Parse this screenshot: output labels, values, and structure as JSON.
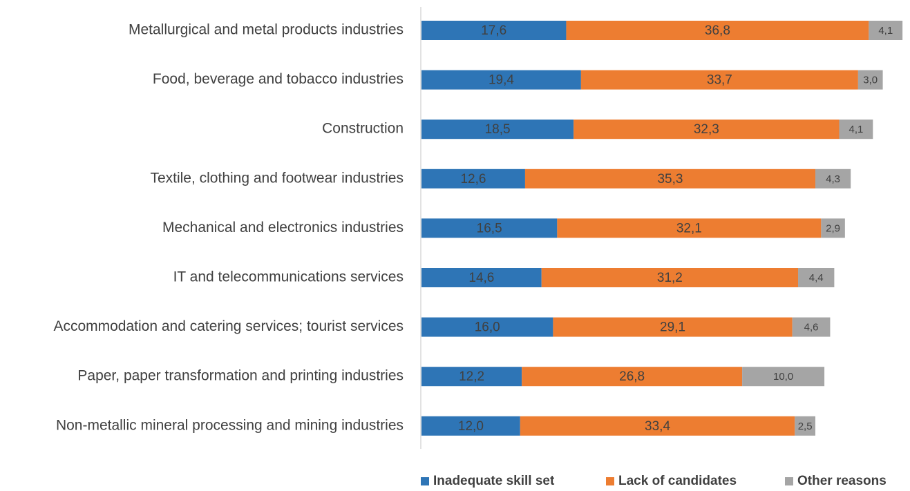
{
  "chart_data": {
    "type": "bar",
    "orientation": "horizontal",
    "stacked": true,
    "categories": [
      "Metallurgical and metal products industries",
      "Food, beverage and tobacco industries",
      "Construction",
      "Textile, clothing and footwear industries",
      "Mechanical and electronics industries",
      "IT and telecommunications services",
      "Accommodation and catering services; tourist services",
      "Paper, paper transformation and printing industries",
      "Non-metallic mineral processing and mining industries"
    ],
    "series": [
      {
        "name": "Inadequate skill set",
        "color": "#2E75B6",
        "values": [
          17.6,
          19.4,
          18.5,
          12.6,
          16.5,
          14.6,
          16.0,
          12.2,
          12.0
        ],
        "labels": [
          "17,6",
          "19,4",
          "18,5",
          "12,6",
          "16,5",
          "14,6",
          "16,0",
          "12,2",
          "12,0"
        ]
      },
      {
        "name": "Lack of candidates",
        "color": "#ED7D31",
        "values": [
          36.8,
          33.7,
          32.3,
          35.3,
          32.1,
          31.2,
          29.1,
          26.8,
          33.4
        ],
        "labels": [
          "36,8",
          "33,7",
          "32,3",
          "35,3",
          "32,1",
          "31,2",
          "29,1",
          "26,8",
          "33,4"
        ]
      },
      {
        "name": "Other reasons",
        "color": "#A5A5A5",
        "values": [
          4.1,
          3.0,
          4.1,
          4.3,
          2.9,
          4.4,
          4.6,
          10.0,
          2.5
        ],
        "labels": [
          "4,1",
          "3,0",
          "4,1",
          "4,3",
          "2,9",
          "4,4",
          "4,6",
          "10,0",
          "2,5"
        ]
      }
    ],
    "xlim": [
      0,
      60
    ],
    "grid": false,
    "legend_position": "bottom-right"
  }
}
